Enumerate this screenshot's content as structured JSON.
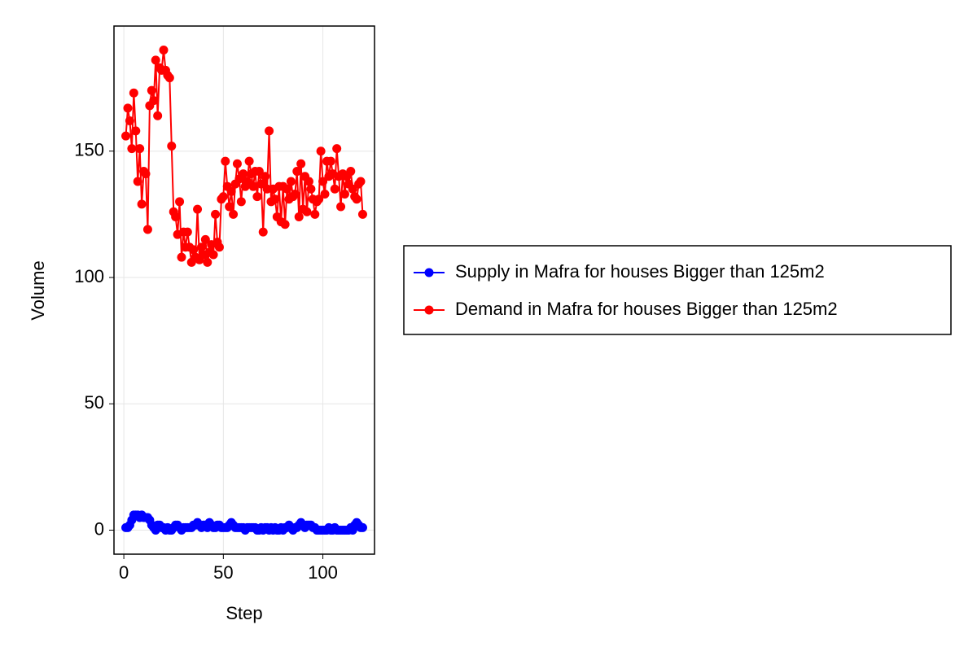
{
  "chart_data": {
    "type": "line",
    "x_label": "Step",
    "y_label": "Volume",
    "xlim": [
      -4.95,
      125.95
    ],
    "ylim": [
      -9.5,
      199.5
    ],
    "xticks": [
      0,
      50,
      100
    ],
    "yticks": [
      0,
      50,
      100,
      150
    ],
    "grid": true,
    "legend": "right",
    "x": [
      1,
      2,
      3,
      4,
      5,
      6,
      7,
      8,
      9,
      10,
      11,
      12,
      13,
      14,
      15,
      16,
      17,
      18,
      19,
      20,
      21,
      22,
      23,
      24,
      25,
      26,
      27,
      28,
      29,
      30,
      31,
      32,
      33,
      34,
      35,
      36,
      37,
      38,
      39,
      40,
      41,
      42,
      43,
      44,
      45,
      46,
      47,
      48,
      49,
      50,
      51,
      52,
      53,
      54,
      55,
      56,
      57,
      58,
      59,
      60,
      61,
      62,
      63,
      64,
      65,
      66,
      67,
      68,
      69,
      70,
      71,
      72,
      73,
      74,
      75,
      76,
      77,
      78,
      79,
      80,
      81,
      82,
      83,
      84,
      85,
      86,
      87,
      88,
      89,
      90,
      91,
      92,
      93,
      94,
      95,
      96,
      97,
      98,
      99,
      100,
      101,
      102,
      103,
      104,
      105,
      106,
      107,
      108,
      109,
      110,
      111,
      112,
      113,
      114,
      115,
      116,
      117,
      118,
      119,
      120
    ],
    "series": [
      {
        "name": "Supply in Mafra for houses Bigger than 125m2",
        "color": "#0000ff",
        "values": [
          1,
          1,
          2,
          4,
          6,
          6,
          6,
          5,
          6,
          5,
          5,
          5,
          4,
          2,
          1,
          0,
          2,
          2,
          1,
          1,
          0,
          1,
          0,
          0,
          1,
          2,
          2,
          1,
          0,
          1,
          1,
          1,
          1,
          1,
          2,
          2,
          3,
          2,
          1,
          2,
          2,
          1,
          3,
          2,
          1,
          1,
          2,
          2,
          1,
          1,
          1,
          1,
          2,
          3,
          2,
          1,
          1,
          1,
          1,
          1,
          0,
          1,
          1,
          1,
          1,
          1,
          0,
          0,
          1,
          0,
          1,
          1,
          0,
          1,
          0,
          1,
          0,
          0,
          1,
          0,
          1,
          1,
          2,
          1,
          0,
          1,
          1,
          2,
          3,
          2,
          1,
          2,
          2,
          2,
          1,
          1,
          0,
          0,
          0,
          0,
          0,
          0,
          1,
          0,
          0,
          1,
          0,
          0,
          0,
          0,
          0,
          0,
          0,
          1,
          0,
          2,
          3,
          2,
          1,
          1
        ]
      },
      {
        "name": "Demand in Mafra for houses Bigger than 125m2",
        "color": "#ff0000",
        "values": [
          156,
          167,
          162,
          151,
          173,
          158,
          138,
          151,
          129,
          142,
          141,
          119,
          168,
          174,
          170,
          186,
          164,
          183,
          182,
          190,
          182,
          180,
          179,
          152,
          126,
          124,
          117,
          130,
          108,
          118,
          112,
          118,
          112,
          106,
          111,
          108,
          127,
          107,
          112,
          109,
          115,
          106,
          110,
          113,
          109,
          125,
          114,
          112,
          131,
          132,
          146,
          136,
          128,
          134,
          125,
          137,
          145,
          139,
          130,
          141,
          136,
          138,
          146,
          141,
          136,
          142,
          132,
          142,
          137,
          118,
          140,
          135,
          158,
          130,
          135,
          131,
          124,
          136,
          122,
          136,
          121,
          135,
          131,
          138,
          132,
          133,
          142,
          124,
          145,
          127,
          140,
          126,
          138,
          135,
          131,
          125,
          130,
          131,
          150,
          138,
          133,
          146,
          140,
          146,
          141,
          135,
          151,
          140,
          128,
          141,
          133,
          140,
          137,
          142,
          135,
          132,
          131,
          137,
          138,
          125
        ]
      }
    ]
  }
}
